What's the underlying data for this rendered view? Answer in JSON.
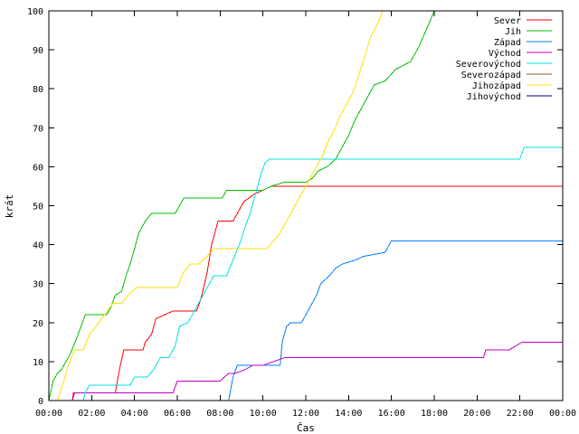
{
  "chart_data": {
    "type": "line",
    "title": "",
    "xlabel": "Čas",
    "ylabel": "krát",
    "xlim": [
      0,
      24
    ],
    "ylim": [
      0,
      100
    ],
    "x_ticks": [
      "00:00",
      "02:00",
      "04:00",
      "06:00",
      "08:00",
      "10:00",
      "12:00",
      "14:00",
      "16:00",
      "18:00",
      "20:00",
      "22:00",
      "00:00"
    ],
    "y_ticks": [
      0,
      10,
      20,
      30,
      40,
      50,
      60,
      70,
      80,
      90,
      100
    ],
    "grid": false,
    "legend_position": "top-right",
    "series": [
      {
        "name": "Sever",
        "color": "#ff0000",
        "points": [
          [
            0,
            0
          ],
          [
            1.1,
            0
          ],
          [
            1.15,
            2
          ],
          [
            3.1,
            2
          ],
          [
            3.3,
            8
          ],
          [
            3.5,
            13
          ],
          [
            4.4,
            13
          ],
          [
            4.5,
            15
          ],
          [
            4.8,
            17
          ],
          [
            5.0,
            21
          ],
          [
            5.4,
            22
          ],
          [
            5.8,
            23
          ],
          [
            6.9,
            23
          ],
          [
            7.1,
            26
          ],
          [
            7.4,
            33
          ],
          [
            7.6,
            40
          ],
          [
            7.9,
            46
          ],
          [
            8.6,
            46
          ],
          [
            8.8,
            48
          ],
          [
            9.1,
            51
          ],
          [
            9.6,
            53
          ],
          [
            10.0,
            54
          ],
          [
            10.4,
            55
          ],
          [
            24,
            55
          ]
        ]
      },
      {
        "name": "Jih",
        "color": "#00c000",
        "points": [
          [
            0,
            0
          ],
          [
            0.2,
            5
          ],
          [
            0.4,
            7
          ],
          [
            0.6,
            8
          ],
          [
            0.8,
            10
          ],
          [
            1.0,
            12
          ],
          [
            1.3,
            16
          ],
          [
            1.5,
            19
          ],
          [
            1.7,
            22
          ],
          [
            2.7,
            22
          ],
          [
            2.9,
            24
          ],
          [
            3.1,
            27
          ],
          [
            3.4,
            28
          ],
          [
            3.6,
            32
          ],
          [
            3.8,
            35
          ],
          [
            4.0,
            39
          ],
          [
            4.2,
            43
          ],
          [
            4.5,
            46
          ],
          [
            4.8,
            48
          ],
          [
            5.9,
            48
          ],
          [
            6.1,
            50
          ],
          [
            6.3,
            52
          ],
          [
            8.1,
            52
          ],
          [
            8.3,
            54
          ],
          [
            10.0,
            54
          ],
          [
            10.4,
            55
          ],
          [
            11.0,
            56
          ],
          [
            12.0,
            56
          ],
          [
            12.3,
            57
          ],
          [
            12.6,
            59
          ],
          [
            13.0,
            60
          ],
          [
            13.4,
            62
          ],
          [
            13.7,
            65
          ],
          [
            14.0,
            68
          ],
          [
            14.3,
            72
          ],
          [
            14.6,
            75
          ],
          [
            14.9,
            78
          ],
          [
            15.2,
            81
          ],
          [
            15.7,
            82
          ],
          [
            16.2,
            85
          ],
          [
            16.9,
            87
          ],
          [
            17.3,
            91
          ],
          [
            17.7,
            96
          ],
          [
            18.0,
            100
          ]
        ]
      },
      {
        "name": "Západ",
        "color": "#0080ff",
        "points": [
          [
            0,
            0
          ],
          [
            8.4,
            0
          ],
          [
            8.6,
            6
          ],
          [
            8.8,
            9
          ],
          [
            9.5,
            9
          ],
          [
            10.8,
            9
          ],
          [
            10.9,
            15
          ],
          [
            11.1,
            19
          ],
          [
            11.3,
            20
          ],
          [
            11.8,
            20
          ],
          [
            12.0,
            22
          ],
          [
            12.2,
            24
          ],
          [
            12.5,
            27
          ],
          [
            12.7,
            30
          ],
          [
            13.1,
            32
          ],
          [
            13.4,
            34
          ],
          [
            13.7,
            35
          ],
          [
            14.3,
            36
          ],
          [
            14.7,
            37
          ],
          [
            15.7,
            38
          ],
          [
            15.9,
            40
          ],
          [
            16.0,
            41
          ],
          [
            24,
            41
          ]
        ]
      },
      {
        "name": "Východ",
        "color": "#c000c0",
        "points": [
          [
            0,
            0
          ],
          [
            1.1,
            0
          ],
          [
            1.2,
            2
          ],
          [
            5.8,
            2
          ],
          [
            6.0,
            5
          ],
          [
            7.8,
            5
          ],
          [
            8.0,
            5
          ],
          [
            8.4,
            7
          ],
          [
            8.7,
            7
          ],
          [
            9.2,
            8
          ],
          [
            9.5,
            9
          ],
          [
            10.0,
            9
          ],
          [
            11.0,
            11
          ],
          [
            20.3,
            11
          ],
          [
            20.4,
            13
          ],
          [
            21.5,
            13
          ],
          [
            21.8,
            14
          ],
          [
            22.1,
            15
          ],
          [
            24,
            15
          ]
        ]
      },
      {
        "name": "Severovýchod",
        "color": "#00e0e0",
        "points": [
          [
            0,
            0
          ],
          [
            1.6,
            0
          ],
          [
            1.7,
            2
          ],
          [
            1.9,
            4
          ],
          [
            3.8,
            4
          ],
          [
            4.0,
            6
          ],
          [
            4.6,
            6
          ],
          [
            4.9,
            8
          ],
          [
            5.2,
            11
          ],
          [
            5.6,
            11
          ],
          [
            5.9,
            14
          ],
          [
            6.1,
            19
          ],
          [
            6.5,
            20
          ],
          [
            6.8,
            23
          ],
          [
            7.1,
            26
          ],
          [
            7.4,
            29
          ],
          [
            7.7,
            32
          ],
          [
            8.3,
            32
          ],
          [
            8.6,
            36
          ],
          [
            8.9,
            40
          ],
          [
            9.2,
            45
          ],
          [
            9.4,
            48
          ],
          [
            9.7,
            54
          ],
          [
            9.9,
            58
          ],
          [
            10.1,
            61
          ],
          [
            10.3,
            62
          ],
          [
            22.0,
            62
          ],
          [
            22.2,
            65
          ],
          [
            24,
            65
          ]
        ]
      },
      {
        "name": "Severozápad",
        "color": "#a05020",
        "points": [
          [
            0,
            0
          ],
          [
            10.0,
            0
          ],
          [
            10.3,
            0
          ],
          [
            24,
            0
          ]
        ]
      },
      {
        "name": "Jihozápad",
        "color": "#ffe000",
        "points": [
          [
            0,
            0
          ],
          [
            0.4,
            0
          ],
          [
            0.7,
            5
          ],
          [
            0.9,
            9
          ],
          [
            1.2,
            13
          ],
          [
            1.6,
            13
          ],
          [
            1.9,
            17
          ],
          [
            2.2,
            19
          ],
          [
            2.6,
            22
          ],
          [
            3.0,
            25
          ],
          [
            3.4,
            25
          ],
          [
            3.7,
            27
          ],
          [
            4.1,
            29
          ],
          [
            6.0,
            29
          ],
          [
            6.3,
            33
          ],
          [
            6.6,
            35
          ],
          [
            7.0,
            35
          ],
          [
            7.4,
            37
          ],
          [
            7.7,
            39
          ],
          [
            9.6,
            39
          ],
          [
            10.2,
            39
          ],
          [
            10.5,
            41
          ],
          [
            10.8,
            43
          ],
          [
            11.0,
            45
          ],
          [
            11.3,
            48
          ],
          [
            11.6,
            51
          ],
          [
            11.9,
            54
          ],
          [
            12.2,
            57
          ],
          [
            12.5,
            60
          ],
          [
            12.8,
            63
          ],
          [
            13.0,
            66
          ],
          [
            13.3,
            69
          ],
          [
            13.6,
            73
          ],
          [
            13.9,
            76
          ],
          [
            14.2,
            79
          ],
          [
            14.5,
            84
          ],
          [
            14.8,
            89
          ],
          [
            15.0,
            93
          ],
          [
            15.3,
            96
          ],
          [
            15.6,
            100
          ]
        ]
      },
      {
        "name": "Jihovýchod",
        "color": "#000080",
        "points": [
          [
            0,
            0
          ],
          [
            24,
            0
          ]
        ]
      }
    ]
  }
}
